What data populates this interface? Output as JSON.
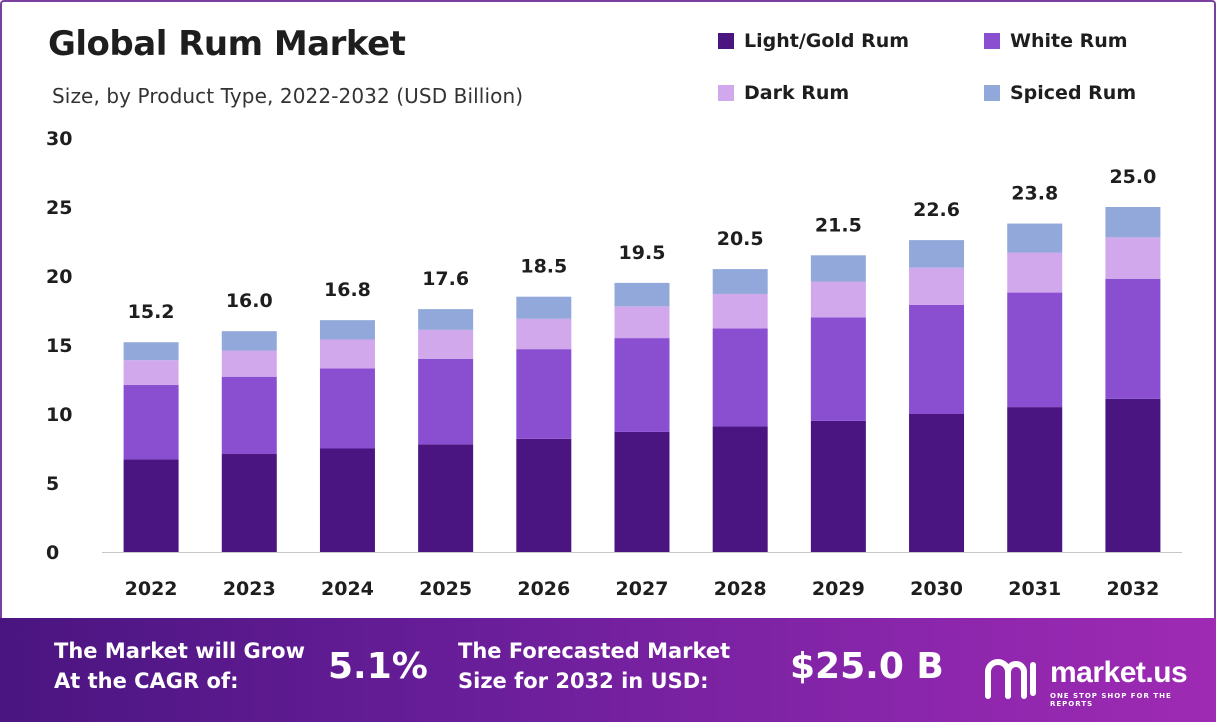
{
  "header": {
    "title": "Global Rum Market",
    "subtitle": "Size, by Product Type, 2022-2032 (USD Billion)"
  },
  "legend": [
    {
      "label": "Light/Gold Rum",
      "color": "#4a1580"
    },
    {
      "label": "White Rum",
      "color": "#8a4fd0"
    },
    {
      "label": "Dark Rum",
      "color": "#d1a8ec"
    },
    {
      "label": "Spiced Rum",
      "color": "#92a8da"
    }
  ],
  "chart_data": {
    "type": "bar",
    "stacked": true,
    "title": "Global Rum Market",
    "subtitle": "Size, by Product Type, 2022-2032 (USD Billion)",
    "xlabel": "",
    "ylabel": "",
    "ylim": [
      0,
      30
    ],
    "yticks": [
      0,
      5,
      10,
      15,
      20,
      25,
      30
    ],
    "grid": false,
    "legend_position": "top-right",
    "categories": [
      "2022",
      "2023",
      "2024",
      "2025",
      "2026",
      "2027",
      "2028",
      "2029",
      "2030",
      "2031",
      "2032"
    ],
    "series": [
      {
        "name": "Light/Gold Rum",
        "color": "#4a1580",
        "values": [
          6.7,
          7.1,
          7.5,
          7.8,
          8.2,
          8.7,
          9.1,
          9.5,
          10.0,
          10.5,
          11.1
        ]
      },
      {
        "name": "White Rum",
        "color": "#8a4fd0",
        "values": [
          5.4,
          5.6,
          5.8,
          6.2,
          6.5,
          6.8,
          7.1,
          7.5,
          7.9,
          8.3,
          8.7
        ]
      },
      {
        "name": "Dark Rum",
        "color": "#d1a8ec",
        "values": [
          1.8,
          1.9,
          2.1,
          2.1,
          2.2,
          2.3,
          2.5,
          2.6,
          2.7,
          2.9,
          3.0
        ]
      },
      {
        "name": "Spiced Rum",
        "color": "#92a8da",
        "values": [
          1.3,
          1.4,
          1.4,
          1.5,
          1.6,
          1.7,
          1.8,
          1.9,
          2.0,
          2.1,
          2.2
        ]
      }
    ],
    "totals": [
      "15.2",
      "16.0",
      "16.8",
      "17.6",
      "18.5",
      "19.5",
      "20.5",
      "21.5",
      "22.6",
      "23.8",
      "25.0"
    ]
  },
  "footer": {
    "cagr_label_line1": "The Market will Grow",
    "cagr_label_line2": "At the CAGR of:",
    "cagr_value": "5.1%",
    "forecast_label_line1": "The Forecasted Market",
    "forecast_label_line2": "Size for 2032 in USD:",
    "forecast_value": "$25.0 B",
    "brand_name": "market.us",
    "brand_tagline": "ONE STOP SHOP FOR THE REPORTS"
  }
}
